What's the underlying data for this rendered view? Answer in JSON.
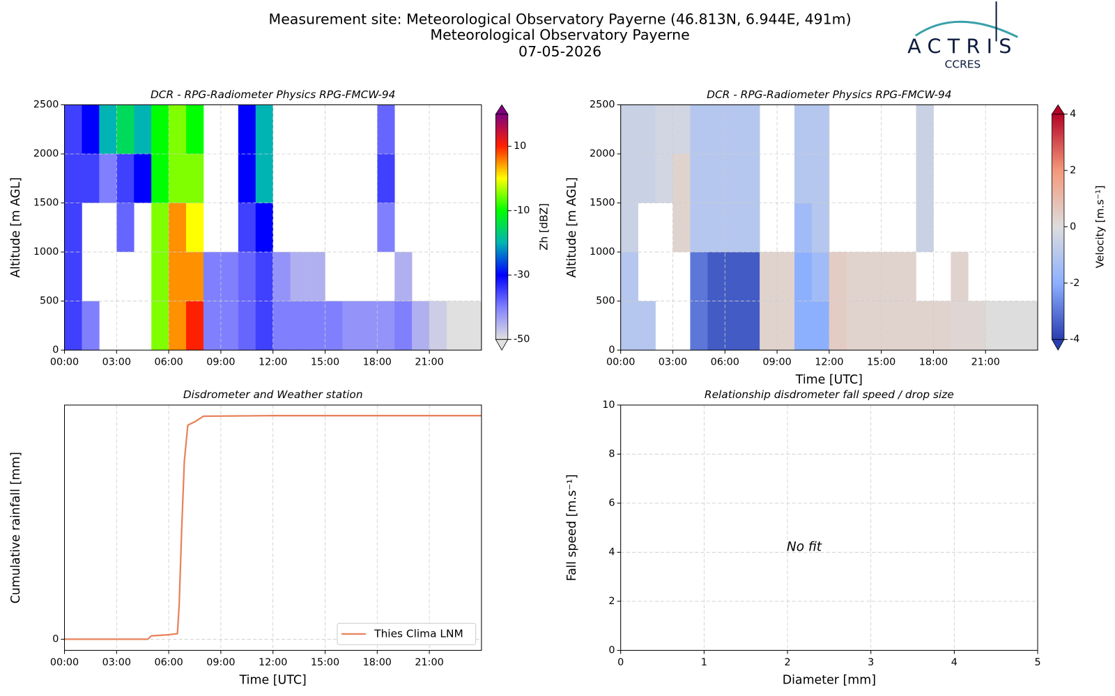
{
  "header": {
    "lines": [
      "Measurement site: Meteorological Observatory Payerne (46.813N, 6.944E, 491m)",
      "Meteorological Observatory Payerne",
      "07-05-2026"
    ],
    "logo": "ACTRIS",
    "logo_sub": "CCRES"
  },
  "chart_data": [
    {
      "type": "heatmap",
      "title": "DCR - RPG-Radiometer Physics RPG-FMCW-94",
      "ylabel": "Altitude [m AGL]",
      "colorbar_label": "Zh [dBZ]",
      "x_edges": [
        0,
        1,
        2,
        3,
        4,
        5,
        6,
        7,
        8,
        9,
        10,
        11,
        12,
        13,
        14,
        15,
        16,
        17,
        18,
        19,
        20,
        21,
        22,
        23,
        24
      ],
      "y_edges": [
        0,
        500,
        1000,
        1500,
        2000,
        2500
      ],
      "z": [
        [
          -35,
          -40,
          null,
          null,
          null,
          -5,
          5,
          10,
          -40,
          -40,
          -38,
          -35,
          -40,
          -40,
          -40,
          -40,
          -42,
          -42,
          -42,
          -40,
          -45,
          -48,
          -50,
          -50
        ],
        [
          -35,
          null,
          null,
          null,
          null,
          -5,
          5,
          5,
          -40,
          -40,
          -38,
          -35,
          -42,
          -45,
          -45,
          null,
          null,
          null,
          null,
          -45,
          null,
          null,
          null,
          null
        ],
        [
          -35,
          null,
          null,
          -38,
          null,
          -5,
          5,
          0,
          null,
          null,
          -35,
          -30,
          null,
          null,
          null,
          null,
          null,
          null,
          -40,
          null,
          null,
          null,
          null,
          null
        ],
        [
          -35,
          -35,
          -40,
          -35,
          -30,
          -10,
          -5,
          -5,
          null,
          null,
          -30,
          -20,
          null,
          null,
          null,
          null,
          null,
          null,
          -35,
          null,
          null,
          null,
          null,
          null
        ],
        [
          -35,
          -30,
          -20,
          -15,
          -20,
          -10,
          -5,
          -10,
          null,
          null,
          -30,
          -20,
          null,
          null,
          null,
          null,
          null,
          null,
          -38,
          null,
          null,
          null,
          null,
          null
        ]
      ],
      "clim": [
        -50,
        20
      ],
      "cticks": [
        -50,
        -30,
        -10,
        10
      ],
      "colormap": [
        "#e0e0e0",
        "#8080ff",
        "#0000ff",
        "#00b4b4",
        "#00ff00",
        "#ffff00",
        "#ff2000",
        "#800080"
      ],
      "xlim": [
        0,
        24
      ],
      "ylim": [
        0,
        2500
      ],
      "xticks": [
        {
          "value": 0,
          "label": "00:00"
        },
        {
          "value": 3,
          "label": "03:00"
        },
        {
          "value": 6,
          "label": "06:00"
        },
        {
          "value": 9,
          "label": "09:00"
        },
        {
          "value": 12,
          "label": "12:00"
        },
        {
          "value": 15,
          "label": "15:00"
        },
        {
          "value": 18,
          "label": "18:00"
        },
        {
          "value": 21,
          "label": "21:00"
        }
      ],
      "yticks": [
        0,
        500,
        1000,
        1500,
        2000,
        2500
      ],
      "grid": true
    },
    {
      "type": "heatmap",
      "title": "DCR - RPG-Radiometer Physics RPG-FMCW-94",
      "ylabel": "Altitude [m AGL]",
      "xlabel": "Time [UTC]",
      "colorbar_label": "Velocity [m.s⁻¹]",
      "x_edges": [
        0,
        1,
        2,
        3,
        4,
        5,
        6,
        7,
        8,
        9,
        10,
        11,
        12,
        13,
        14,
        15,
        16,
        17,
        18,
        19,
        20,
        21,
        22,
        23,
        24
      ],
      "y_edges": [
        0,
        500,
        1000,
        1500,
        2000,
        2500
      ],
      "z": [
        [
          -1,
          -1,
          null,
          null,
          -3,
          -3.5,
          -3.5,
          -3.5,
          0.3,
          0.3,
          -2,
          -2,
          0.5,
          0.3,
          0.3,
          0.3,
          0.3,
          0.3,
          0.3,
          0.2,
          0.2,
          0,
          0,
          0
        ],
        [
          -1,
          null,
          null,
          null,
          -3,
          -3.5,
          -3.5,
          -3.5,
          0.3,
          0.3,
          -2,
          -1.5,
          0.5,
          0.3,
          0.3,
          0.3,
          0.3,
          null,
          null,
          0.3,
          null,
          null,
          null,
          null
        ],
        [
          -0.5,
          null,
          null,
          0.3,
          -1,
          -1,
          -1,
          -1,
          null,
          null,
          -1.5,
          -1,
          null,
          null,
          null,
          null,
          null,
          -0.5,
          null,
          null,
          null,
          null,
          null,
          null
        ],
        [
          -0.5,
          -0.5,
          -0.3,
          0.3,
          -1,
          -1,
          -1,
          -1,
          null,
          null,
          -1,
          -1,
          null,
          null,
          null,
          null,
          null,
          -0.5,
          null,
          null,
          null,
          null,
          null,
          null
        ],
        [
          -0.5,
          -0.5,
          -0.3,
          -0.3,
          -1,
          -1,
          -1,
          -1,
          null,
          null,
          -1,
          -1,
          null,
          null,
          null,
          null,
          null,
          -0.5,
          null,
          null,
          null,
          null,
          null,
          null
        ]
      ],
      "clim": [
        -4,
        4
      ],
      "cticks": [
        -4,
        -2,
        0,
        2,
        4
      ],
      "colormap": [
        "#2a3eb1",
        "#8db0fe",
        "#dddddd",
        "#f4987a",
        "#b40426"
      ],
      "xlim": [
        0,
        24
      ],
      "ylim": [
        0,
        2500
      ],
      "xticks": [
        {
          "value": 0,
          "label": "00:00"
        },
        {
          "value": 3,
          "label": "03:00"
        },
        {
          "value": 6,
          "label": "06:00"
        },
        {
          "value": 9,
          "label": "09:00"
        },
        {
          "value": 12,
          "label": "12:00"
        },
        {
          "value": 15,
          "label": "15:00"
        },
        {
          "value": 18,
          "label": "18:00"
        },
        {
          "value": 21,
          "label": "21:00"
        }
      ],
      "yticks": [
        0,
        500,
        1000,
        1500,
        2000,
        2500
      ],
      "grid": true
    },
    {
      "type": "line",
      "title": "Disdrometer and Weather station",
      "ylabel": "Cumulative rainfall [mm]",
      "xlabel": "Time [UTC]",
      "series": [
        {
          "name": "Thies Clima LNM",
          "color": "#e8825a",
          "x": [
            0,
            4.8,
            5,
            6,
            6.5,
            6.6,
            6.75,
            6.9,
            7.1,
            7.5,
            8,
            12,
            24
          ],
          "values": [
            0,
            0,
            0.3,
            0.4,
            0.5,
            3,
            10,
            16,
            19.2,
            19.5,
            20,
            20.05,
            20.05
          ]
        }
      ],
      "legend": "lower right",
      "xlim": [
        0,
        24
      ],
      "ylim": [
        -1,
        21
      ],
      "xticks": [
        {
          "value": 0,
          "label": "00:00"
        },
        {
          "value": 3,
          "label": "03:00"
        },
        {
          "value": 6,
          "label": "06:00"
        },
        {
          "value": 9,
          "label": "09:00"
        },
        {
          "value": 12,
          "label": "12:00"
        },
        {
          "value": 15,
          "label": "15:00"
        },
        {
          "value": 18,
          "label": "18:00"
        },
        {
          "value": 21,
          "label": "21:00"
        }
      ],
      "yticks": [
        0
      ],
      "grid": true
    },
    {
      "type": "scatter",
      "title": "Relationship disdrometer fall speed / drop size",
      "ylabel": "Fall speed [m.s⁻¹]",
      "xlabel": "Diameter [mm]",
      "annotation": "No fit",
      "xlim": [
        0,
        5
      ],
      "ylim": [
        0,
        10
      ],
      "xticks": [
        0,
        1,
        2,
        3,
        4,
        5
      ],
      "yticks": [
        0,
        2,
        4,
        6,
        8,
        10
      ],
      "grid": true
    }
  ]
}
